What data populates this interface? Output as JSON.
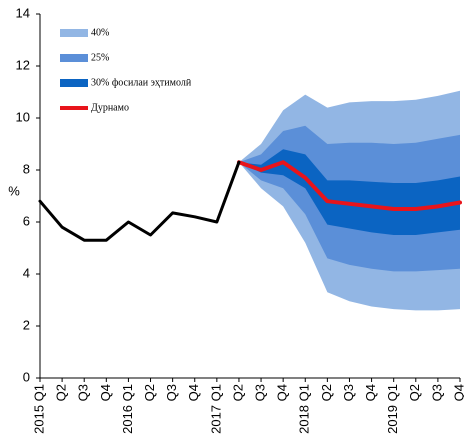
{
  "chart_data": {
    "type": "fan",
    "y_label": "%",
    "categories": [
      "2015 Q1",
      "Q2",
      "Q3",
      "Q4",
      "2016 Q1",
      "Q2",
      "Q3",
      "Q4",
      "2017 Q1",
      "Q2",
      "Q3",
      "Q4",
      "2018 Q1",
      "Q2",
      "Q3",
      "Q4",
      "2019 Q1",
      "Q2",
      "Q3",
      "Q4"
    ],
    "ylim": [
      0,
      14
    ],
    "yticks": [
      0,
      2,
      4,
      6,
      8,
      10,
      12,
      14
    ],
    "vline": "2017 Q2",
    "series": [
      {
        "name": "40%",
        "kind": "band",
        "color": "#92b6e4",
        "upper": [
          null,
          null,
          null,
          null,
          null,
          null,
          null,
          null,
          null,
          8.3,
          9.0,
          10.3,
          10.9,
          10.4,
          10.6,
          10.65,
          10.65,
          10.7,
          10.85,
          11.05
        ],
        "lower": [
          null,
          null,
          null,
          null,
          null,
          null,
          null,
          null,
          null,
          8.3,
          7.3,
          6.6,
          5.2,
          3.3,
          2.95,
          2.75,
          2.65,
          2.6,
          2.6,
          2.65
        ]
      },
      {
        "name": "25%",
        "kind": "band",
        "color": "#5b8fd8",
        "upper": [
          null,
          null,
          null,
          null,
          null,
          null,
          null,
          null,
          null,
          8.3,
          8.6,
          9.5,
          9.7,
          9.0,
          9.05,
          9.05,
          9.0,
          9.05,
          9.2,
          9.35
        ],
        "lower": [
          null,
          null,
          null,
          null,
          null,
          null,
          null,
          null,
          null,
          8.3,
          7.6,
          7.3,
          6.3,
          4.6,
          4.35,
          4.2,
          4.1,
          4.1,
          4.15,
          4.2
        ]
      },
      {
        "name": "30% фосилаи эҳтимолӣ",
        "kind": "band",
        "color": "#0b64c2",
        "upper": [
          null,
          null,
          null,
          null,
          null,
          null,
          null,
          null,
          null,
          8.3,
          8.2,
          8.8,
          8.6,
          7.6,
          7.6,
          7.55,
          7.5,
          7.5,
          7.6,
          7.75
        ],
        "lower": [
          null,
          null,
          null,
          null,
          null,
          null,
          null,
          null,
          null,
          8.3,
          7.9,
          7.8,
          7.3,
          5.9,
          5.75,
          5.6,
          5.5,
          5.5,
          5.6,
          5.7
        ]
      },
      {
        "name": "Дурнамо",
        "kind": "line",
        "color": "#e8141b",
        "width": 4,
        "values": [
          null,
          null,
          null,
          null,
          null,
          null,
          null,
          null,
          null,
          8.3,
          8.0,
          8.3,
          7.7,
          6.8,
          6.7,
          6.6,
          6.5,
          6.5,
          6.6,
          6.75
        ]
      },
      {
        "kind": "line",
        "color": "#000000",
        "width": 3,
        "values": [
          6.8,
          5.8,
          5.3,
          5.3,
          6.0,
          5.5,
          6.35,
          6.2,
          6.0,
          8.3,
          null,
          null,
          null,
          null,
          null,
          null,
          null,
          null,
          null,
          null
        ]
      }
    ]
  }
}
